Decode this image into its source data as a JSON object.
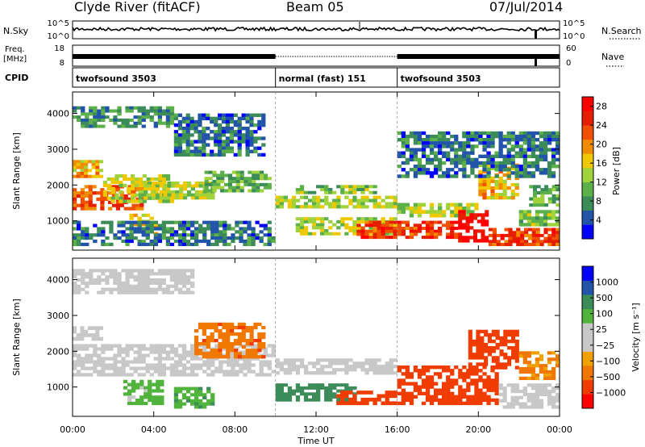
{
  "header": {
    "site_title": "Clyde River (fitACF)",
    "beam": "Beam 05",
    "date": "07/Jul/2014"
  },
  "summary_panels": {
    "nsky_label": "N.Sky",
    "nsky_ticks": [
      "10^5",
      "10^0"
    ],
    "nsearch_label": "N.Search",
    "nsearch_ticks": [
      "10^5",
      "10^0"
    ],
    "freq_label_line1": "Freq.",
    "freq_label_line2": "[MHz]",
    "freq_ticks": [
      "18",
      "8"
    ],
    "nave_label": "Nave",
    "nave_ticks": [
      "60",
      "0"
    ],
    "cpid_label": "CPID"
  },
  "cpid_segments": [
    {
      "label": "twofsound 3503",
      "start_hour": 0,
      "end_hour": 10
    },
    {
      "label": "normal (fast) 151",
      "start_hour": 10,
      "end_hour": 16
    },
    {
      "label": "twofsound 3503",
      "start_hour": 16,
      "end_hour": 24
    }
  ],
  "axes": {
    "xlabel": "Time UT",
    "x_ticks": [
      "00:00",
      "04:00",
      "08:00",
      "12:00",
      "16:00",
      "20:00",
      "00:00"
    ],
    "x_hours": [
      0,
      4,
      8,
      12,
      16,
      20,
      24
    ],
    "ylabel": "Slant Range [km]",
    "y_ticks": [
      1000,
      2000,
      3000,
      4000
    ],
    "ylim": [
      180,
      4600
    ]
  },
  "colors": {
    "power_scale": [
      "#0000ff",
      "#2255aa",
      "#3c8c5a",
      "#5cb04a",
      "#a0d23c",
      "#f0c800",
      "#f08c00",
      "#f05000",
      "#e61e00",
      "#ff0000"
    ],
    "velocity_scale": [
      "#ff0000",
      "#f03c00",
      "#f07800",
      "#f0a000",
      "#c8c8c8",
      "#c8c8c8",
      "#50b43c",
      "#3c8c5a",
      "#2255aa",
      "#0000ff"
    ]
  },
  "chart_data": [
    {
      "type": "heatmap",
      "name": "power",
      "colorbar_label": "Power [dB]",
      "colorbar_ticks": [
        4,
        8,
        12,
        16,
        20,
        24,
        28
      ],
      "colorbar_range": [
        0,
        30
      ],
      "x_unit": "hour UT",
      "y_unit": "km",
      "patches": [
        {
          "x": [
            0,
            3.5
          ],
          "y": [
            1300,
            2000
          ],
          "level": 22
        },
        {
          "x": [
            0,
            1.5
          ],
          "y": [
            2200,
            2700
          ],
          "level": 18
        },
        {
          "x": [
            1.5,
            5
          ],
          "y": [
            1500,
            2300
          ],
          "level": 14
        },
        {
          "x": [
            2.8,
            4.2
          ],
          "y": [
            600,
            1200
          ],
          "level": 16
        },
        {
          "x": [
            3.5,
            7
          ],
          "y": [
            1600,
            2100
          ],
          "level": 14
        },
        {
          "x": [
            6.5,
            9.8
          ],
          "y": [
            1800,
            2400
          ],
          "level": 10
        },
        {
          "x": [
            0,
            10
          ],
          "y": [
            300,
            1000
          ],
          "level": 6
        },
        {
          "x": [
            0,
            5
          ],
          "y": [
            3600,
            4200
          ],
          "level": 8
        },
        {
          "x": [
            5,
            9.5
          ],
          "y": [
            2800,
            4000
          ],
          "level": 6
        },
        {
          "x": [
            10,
            16
          ],
          "y": [
            1350,
            1700
          ],
          "level": 14
        },
        {
          "x": [
            11,
            15
          ],
          "y": [
            1750,
            2000
          ],
          "level": 12
        },
        {
          "x": [
            11,
            16
          ],
          "y": [
            600,
            1100
          ],
          "level": 14
        },
        {
          "x": [
            14,
            19
          ],
          "y": [
            500,
            1000
          ],
          "level": 24
        },
        {
          "x": [
            16,
            20
          ],
          "y": [
            1100,
            1500
          ],
          "level": 14
        },
        {
          "x": [
            19,
            20.5
          ],
          "y": [
            400,
            1300
          ],
          "level": 28
        },
        {
          "x": [
            20,
            22
          ],
          "y": [
            1600,
            2600
          ],
          "level": 18
        },
        {
          "x": [
            20.5,
            24
          ],
          "y": [
            300,
            800
          ],
          "level": 24
        },
        {
          "x": [
            22,
            24
          ],
          "y": [
            850,
            1300
          ],
          "level": 12
        },
        {
          "x": [
            22.5,
            24
          ],
          "y": [
            1400,
            2000
          ],
          "level": 10
        },
        {
          "x": [
            16,
            24
          ],
          "y": [
            2200,
            3500
          ],
          "level": 6
        }
      ]
    },
    {
      "type": "heatmap",
      "name": "velocity",
      "colorbar_label": "Velocity [m s⁻¹]",
      "colorbar_ticks": [
        "1000",
        "500",
        "100",
        "25",
        "−25",
        "−100",
        "−500",
        "−1000"
      ],
      "colorbar_range": [
        -1000,
        1000
      ],
      "x_unit": "hour UT",
      "y_unit": "km",
      "patches": [
        {
          "x": [
            0,
            10
          ],
          "y": [
            1300,
            2200
          ],
          "level": 0
        },
        {
          "x": [
            0,
            1.5
          ],
          "y": [
            2300,
            2700
          ],
          "level": 0
        },
        {
          "x": [
            0,
            6
          ],
          "y": [
            3600,
            4300
          ],
          "level": 0
        },
        {
          "x": [
            2.5,
            4.5
          ],
          "y": [
            500,
            1200
          ],
          "level": 60
        },
        {
          "x": [
            5,
            7
          ],
          "y": [
            400,
            1000
          ],
          "level": 80
        },
        {
          "x": [
            6,
            9.5
          ],
          "y": [
            1800,
            2800
          ],
          "level": -80
        },
        {
          "x": [
            10,
            14
          ],
          "y": [
            600,
            1100
          ],
          "level": 150
        },
        {
          "x": [
            10,
            16
          ],
          "y": [
            1350,
            1800
          ],
          "level": 0
        },
        {
          "x": [
            13,
            16
          ],
          "y": [
            500,
            900
          ],
          "level": -300
        },
        {
          "x": [
            16,
            21
          ],
          "y": [
            500,
            1600
          ],
          "level": -300
        },
        {
          "x": [
            19.5,
            22
          ],
          "y": [
            1500,
            2600
          ],
          "level": -200
        },
        {
          "x": [
            21,
            24
          ],
          "y": [
            400,
            1100
          ],
          "level": 0
        },
        {
          "x": [
            22,
            24
          ],
          "y": [
            1200,
            2000
          ],
          "level": -60
        }
      ]
    }
  ]
}
